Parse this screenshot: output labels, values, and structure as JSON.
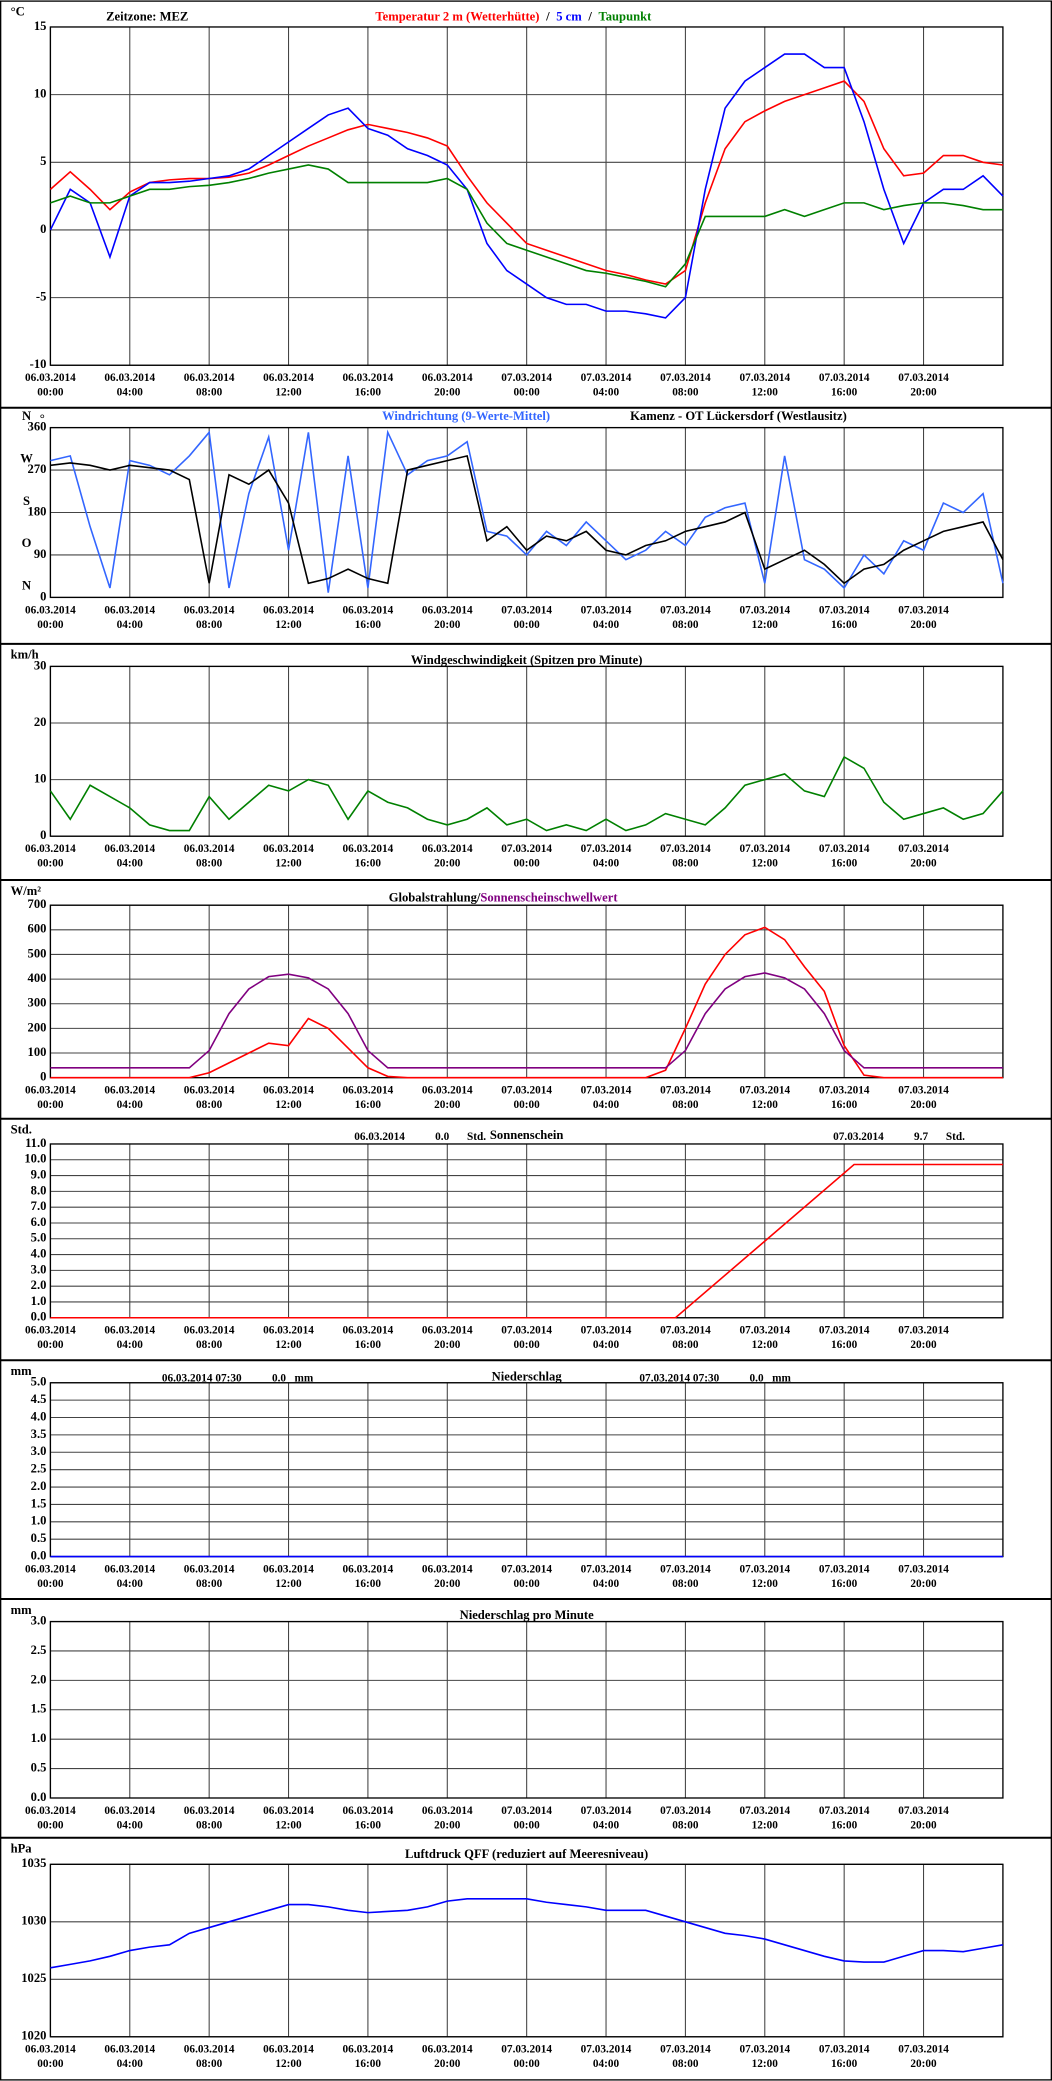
{
  "time_axis": {
    "xlim": [
      0,
      48
    ],
    "xticks": [
      {
        "value": 0,
        "label": [
          "06.03.2014",
          "00:00"
        ]
      },
      {
        "value": 4,
        "label": [
          "06.03.2014",
          "04:00"
        ]
      },
      {
        "value": 8,
        "label": [
          "06.03.2014",
          "08:00"
        ]
      },
      {
        "value": 12,
        "label": [
          "06.03.2014",
          "12:00"
        ]
      },
      {
        "value": 16,
        "label": [
          "06.03.2014",
          "16:00"
        ]
      },
      {
        "value": 20,
        "label": [
          "06.03.2014",
          "20:00"
        ]
      },
      {
        "value": 24,
        "label": [
          "07.03.2014",
          "00:00"
        ]
      },
      {
        "value": 28,
        "label": [
          "07.03.2014",
          "04:00"
        ]
      },
      {
        "value": 32,
        "label": [
          "07.03.2014",
          "08:00"
        ]
      },
      {
        "value": 36,
        "label": [
          "07.03.2014",
          "12:00"
        ]
      },
      {
        "value": 40,
        "label": [
          "07.03.2014",
          "16:00"
        ]
      },
      {
        "value": 44,
        "label": [
          "07.03.2014",
          "20:00"
        ]
      }
    ]
  },
  "chart_data": [
    {
      "type": "line",
      "timezone": "Zeitzone: MEZ",
      "unit": "°C",
      "legend_separator": "/",
      "grid": true,
      "ylim": [
        -10,
        15
      ],
      "yticks": [
        -10,
        -5,
        0,
        5,
        10,
        15
      ],
      "x": [
        0,
        1,
        2,
        3,
        4,
        5,
        6,
        7,
        8,
        9,
        10,
        11,
        12,
        13,
        14,
        15,
        16,
        17,
        18,
        19,
        20,
        21,
        22,
        23,
        24,
        25,
        26,
        27,
        28,
        29,
        30,
        31,
        32,
        33,
        34,
        35,
        36,
        37,
        38,
        39,
        40,
        41,
        42,
        43,
        44,
        45,
        46,
        47,
        48
      ],
      "series": [
        {
          "name": "Temperatur 2 m (Wetterhütte)",
          "color": "#ff0000",
          "values": [
            3.0,
            4.3,
            3.0,
            1.5,
            2.8,
            3.5,
            3.7,
            3.8,
            3.8,
            3.9,
            4.2,
            4.8,
            5.5,
            6.2,
            6.8,
            7.4,
            7.8,
            7.5,
            7.2,
            6.8,
            6.2,
            4.0,
            2.0,
            0.5,
            -1.0,
            -1.5,
            -2.0,
            -2.5,
            -3.0,
            -3.3,
            -3.7,
            -4.0,
            -3.0,
            2.0,
            6.0,
            8.0,
            8.8,
            9.5,
            10.0,
            10.5,
            11.0,
            9.5,
            6.0,
            4.0,
            4.2,
            5.5,
            5.5,
            5.0,
            4.8
          ]
        },
        {
          "name": "5 cm",
          "color": "#0000ff",
          "values": [
            0,
            3,
            2,
            -2,
            2.5,
            3.5,
            3.5,
            3.6,
            3.8,
            4,
            4.5,
            5.5,
            6.5,
            7.5,
            8.5,
            9,
            7.5,
            7,
            6,
            5.5,
            4.8,
            3,
            -1,
            -3,
            -4,
            -5,
            -5.5,
            -5.5,
            -6,
            -6,
            -6.2,
            -6.5,
            -5,
            3,
            9,
            11,
            12,
            13,
            13,
            12,
            12,
            8,
            3,
            -1,
            2,
            3,
            3,
            4,
            2.5
          ]
        },
        {
          "name": "Taupunkt",
          "color": "#008000",
          "values": [
            2,
            2.5,
            2,
            2,
            2.5,
            3,
            3,
            3.2,
            3.3,
            3.5,
            3.8,
            4.2,
            4.5,
            4.8,
            4.5,
            3.5,
            3.5,
            3.5,
            3.5,
            3.5,
            3.8,
            3,
            0.5,
            -1,
            -1.5,
            -2,
            -2.5,
            -3,
            -3.2,
            -3.5,
            -3.8,
            -4.2,
            -2.5,
            1,
            1,
            1,
            1,
            1.5,
            1,
            1.5,
            2,
            2,
            1.5,
            1.8,
            2,
            2,
            1.8,
            1.5,
            1.5
          ]
        }
      ]
    },
    {
      "type": "line",
      "unit": "°",
      "subtitle": "Kamenz - OT Lückersdorf (Westlausitz)",
      "grid": true,
      "ylim": [
        0,
        360
      ],
      "yticks": [
        0,
        90,
        180,
        270,
        360
      ],
      "ytick_letters": [
        "N",
        "O",
        "S",
        "W",
        "N"
      ],
      "x": [
        0,
        1,
        2,
        3,
        4,
        5,
        6,
        7,
        8,
        9,
        10,
        11,
        12,
        13,
        14,
        15,
        16,
        17,
        18,
        19,
        20,
        21,
        22,
        23,
        24,
        25,
        26,
        27,
        28,
        29,
        30,
        31,
        32,
        33,
        34,
        35,
        36,
        37,
        38,
        39,
        40,
        41,
        42,
        43,
        44,
        45,
        46,
        47,
        48
      ],
      "series": [
        {
          "name": "Windrichtung (9-Werte-Mittel)",
          "color": "#3366ff",
          "values": [
            290,
            300,
            150,
            20,
            290,
            280,
            260,
            300,
            350,
            20,
            220,
            340,
            100,
            350,
            10,
            300,
            20,
            350,
            260,
            290,
            300,
            330,
            140,
            130,
            90,
            140,
            110,
            160,
            120,
            80,
            100,
            140,
            110,
            170,
            190,
            200,
            30,
            300,
            80,
            60,
            20,
            90,
            50,
            120,
            100,
            200,
            180,
            220,
            30
          ]
        },
        {
          "color": "#000000",
          "values": [
            280,
            285,
            280,
            270,
            280,
            275,
            270,
            250,
            30,
            260,
            240,
            270,
            200,
            30,
            40,
            60,
            40,
            30,
            270,
            280,
            290,
            300,
            120,
            150,
            100,
            130,
            120,
            140,
            100,
            90,
            110,
            120,
            140,
            150,
            160,
            180,
            60,
            80,
            100,
            70,
            30,
            60,
            70,
            100,
            120,
            140,
            150,
            160,
            80
          ]
        }
      ]
    },
    {
      "type": "line",
      "unit": "km/h",
      "title": "Windgeschwindigkeit (Spitzen pro Minute)",
      "grid": true,
      "ylim": [
        0,
        30
      ],
      "yticks": [
        0,
        10,
        20,
        30
      ],
      "x": [
        0,
        1,
        2,
        3,
        4,
        5,
        6,
        7,
        8,
        9,
        10,
        11,
        12,
        13,
        14,
        15,
        16,
        17,
        18,
        19,
        20,
        21,
        22,
        23,
        24,
        25,
        26,
        27,
        28,
        29,
        30,
        31,
        32,
        33,
        34,
        35,
        36,
        37,
        38,
        39,
        40,
        41,
        42,
        43,
        44,
        45,
        46,
        47,
        48
      ],
      "series": [
        {
          "color": "#008000",
          "values": [
            8,
            3,
            9,
            7,
            5,
            2,
            1,
            1,
            7,
            3,
            6,
            9,
            8,
            10,
            9,
            3,
            8,
            6,
            5,
            3,
            2,
            3,
            5,
            2,
            3,
            1,
            2,
            1,
            3,
            1,
            2,
            4,
            3,
            2,
            5,
            9,
            10,
            11,
            8,
            7,
            14,
            12,
            6,
            3,
            4,
            5,
            3,
            4,
            8
          ]
        }
      ]
    },
    {
      "type": "line",
      "unit": "W/m²",
      "legend_separator": "/",
      "grid": true,
      "ylim": [
        0,
        700
      ],
      "yticks": [
        0,
        100,
        200,
        300,
        400,
        500,
        600,
        700
      ],
      "x": [
        0,
        1,
        2,
        3,
        4,
        5,
        6,
        7,
        8,
        9,
        10,
        11,
        12,
        13,
        14,
        15,
        16,
        17,
        18,
        19,
        20,
        21,
        22,
        23,
        24,
        25,
        26,
        27,
        28,
        29,
        30,
        31,
        32,
        33,
        34,
        35,
        36,
        37,
        38,
        39,
        40,
        41,
        42,
        43,
        44,
        45,
        46,
        47,
        48
      ],
      "series": [
        {
          "name": "Globalstrahlung",
          "color": "#ff0000",
          "legend_color": "#000000",
          "values": [
            0,
            0,
            0,
            0,
            0,
            0,
            0,
            0,
            20,
            60,
            100,
            140,
            130,
            240,
            200,
            120,
            40,
            5,
            0,
            0,
            0,
            0,
            0,
            0,
            0,
            0,
            0,
            0,
            0,
            0,
            0,
            30,
            200,
            380,
            500,
            580,
            610,
            560,
            450,
            350,
            130,
            10,
            0,
            0,
            0,
            0,
            0,
            0,
            0
          ]
        },
        {
          "name": "Sonnenscheinschwellwert",
          "color": "#800080",
          "values": [
            40,
            40,
            40,
            40,
            40,
            40,
            40,
            40,
            110,
            260,
            360,
            410,
            420,
            405,
            360,
            260,
            110,
            40,
            40,
            40,
            40,
            40,
            40,
            40,
            40,
            40,
            40,
            40,
            40,
            40,
            40,
            40,
            110,
            260,
            360,
            410,
            425,
            405,
            360,
            260,
            110,
            40,
            40,
            40,
            40,
            40,
            40,
            40,
            40
          ]
        }
      ]
    },
    {
      "type": "line",
      "unit": "Std.",
      "title": "Sonnenschein",
      "grid": true,
      "annotations": [
        [
          "06.03.2014",
          "0.0",
          "Std."
        ],
        [
          "07.03.2014",
          "9.7",
          "Std."
        ]
      ],
      "ylim": [
        0,
        11
      ],
      "yticks": [
        {
          "value": 0,
          "label": "0.0"
        },
        {
          "value": 1,
          "label": "1.0"
        },
        {
          "value": 2,
          "label": "2.0"
        },
        {
          "value": 3,
          "label": "3.0"
        },
        {
          "value": 4,
          "label": "4.0"
        },
        {
          "value": 5,
          "label": "5.0"
        },
        {
          "value": 6,
          "label": "6.0"
        },
        {
          "value": 7,
          "label": "7.0"
        },
        {
          "value": 8,
          "label": "8.0"
        },
        {
          "value": 9,
          "label": "9.0"
        },
        {
          "value": 10,
          "label": "10.0"
        },
        {
          "value": 11,
          "label": "11.0"
        }
      ],
      "x": [
        0,
        31.5,
        40.5,
        48
      ],
      "series": [
        {
          "color": "#ff0000",
          "values": [
            0,
            0,
            9.7,
            9.7
          ]
        }
      ]
    },
    {
      "type": "line",
      "unit": "mm",
      "title": "Niederschlag",
      "grid": true,
      "annotations": [
        [
          "06.03.2014 07:30",
          "0.0",
          "mm"
        ],
        [
          "07.03.2014 07:30",
          "0.0",
          "mm"
        ]
      ],
      "ylim": [
        0,
        5
      ],
      "yticks": [
        {
          "value": 0,
          "label": "0.0"
        },
        {
          "value": 0.5,
          "label": "0.5"
        },
        {
          "value": 1,
          "label": "1.0"
        },
        {
          "value": 1.5,
          "label": "1.5"
        },
        {
          "value": 2,
          "label": "2.0"
        },
        {
          "value": 2.5,
          "label": "2.5"
        },
        {
          "value": 3,
          "label": "3.0"
        },
        {
          "value": 3.5,
          "label": "3.5"
        },
        {
          "value": 4,
          "label": "4.0"
        },
        {
          "value": 4.5,
          "label": "4.5"
        },
        {
          "value": 5,
          "label": "5.0"
        }
      ],
      "x": [
        0,
        48
      ],
      "series": [
        {
          "color": "#0000ff",
          "values": [
            0,
            0
          ]
        }
      ]
    },
    {
      "type": "line",
      "unit": "mm",
      "title": "Niederschlag pro Minute",
      "grid": true,
      "ylim": [
        0,
        3
      ],
      "yticks": [
        {
          "value": 0,
          "label": "0.0"
        },
        {
          "value": 0.5,
          "label": "0.5"
        },
        {
          "value": 1,
          "label": "1.0"
        },
        {
          "value": 1.5,
          "label": "1.5"
        },
        {
          "value": 2,
          "label": "2.0"
        },
        {
          "value": 2.5,
          "label": "2.5"
        },
        {
          "value": 3,
          "label": "3.0"
        }
      ]
    },
    {
      "type": "line",
      "unit": "hPa",
      "title": "Luftdruck QFF (reduziert auf Meeresniveau)",
      "grid": true,
      "ylim": [
        1020,
        1035
      ],
      "yticks": [
        1020,
        1025,
        1030,
        1035
      ],
      "x": [
        0,
        1,
        2,
        3,
        4,
        5,
        6,
        7,
        8,
        9,
        10,
        11,
        12,
        13,
        14,
        15,
        16,
        17,
        18,
        19,
        20,
        21,
        22,
        23,
        24,
        25,
        26,
        27,
        28,
        29,
        30,
        31,
        32,
        33,
        34,
        35,
        36,
        37,
        38,
        39,
        40,
        41,
        42,
        43,
        44,
        45,
        46,
        47,
        48
      ],
      "series": [
        {
          "color": "#0000ff",
          "values": [
            1026,
            1026.3,
            1026.6,
            1027,
            1027.5,
            1027.8,
            1028,
            1029,
            1029.5,
            1030,
            1030.5,
            1031,
            1031.5,
            1031.5,
            1031.3,
            1031,
            1030.8,
            1030.9,
            1031,
            1031.3,
            1031.8,
            1032,
            1032,
            1032,
            1032,
            1031.7,
            1031.5,
            1031.3,
            1031,
            1031,
            1031,
            1030.5,
            1030,
            1029.5,
            1029,
            1028.8,
            1028.5,
            1028,
            1027.5,
            1027,
            1026.6,
            1026.5,
            1026.5,
            1027,
            1027.5,
            1027.5,
            1027.4,
            1027.7,
            1028
          ]
        }
      ]
    }
  ]
}
